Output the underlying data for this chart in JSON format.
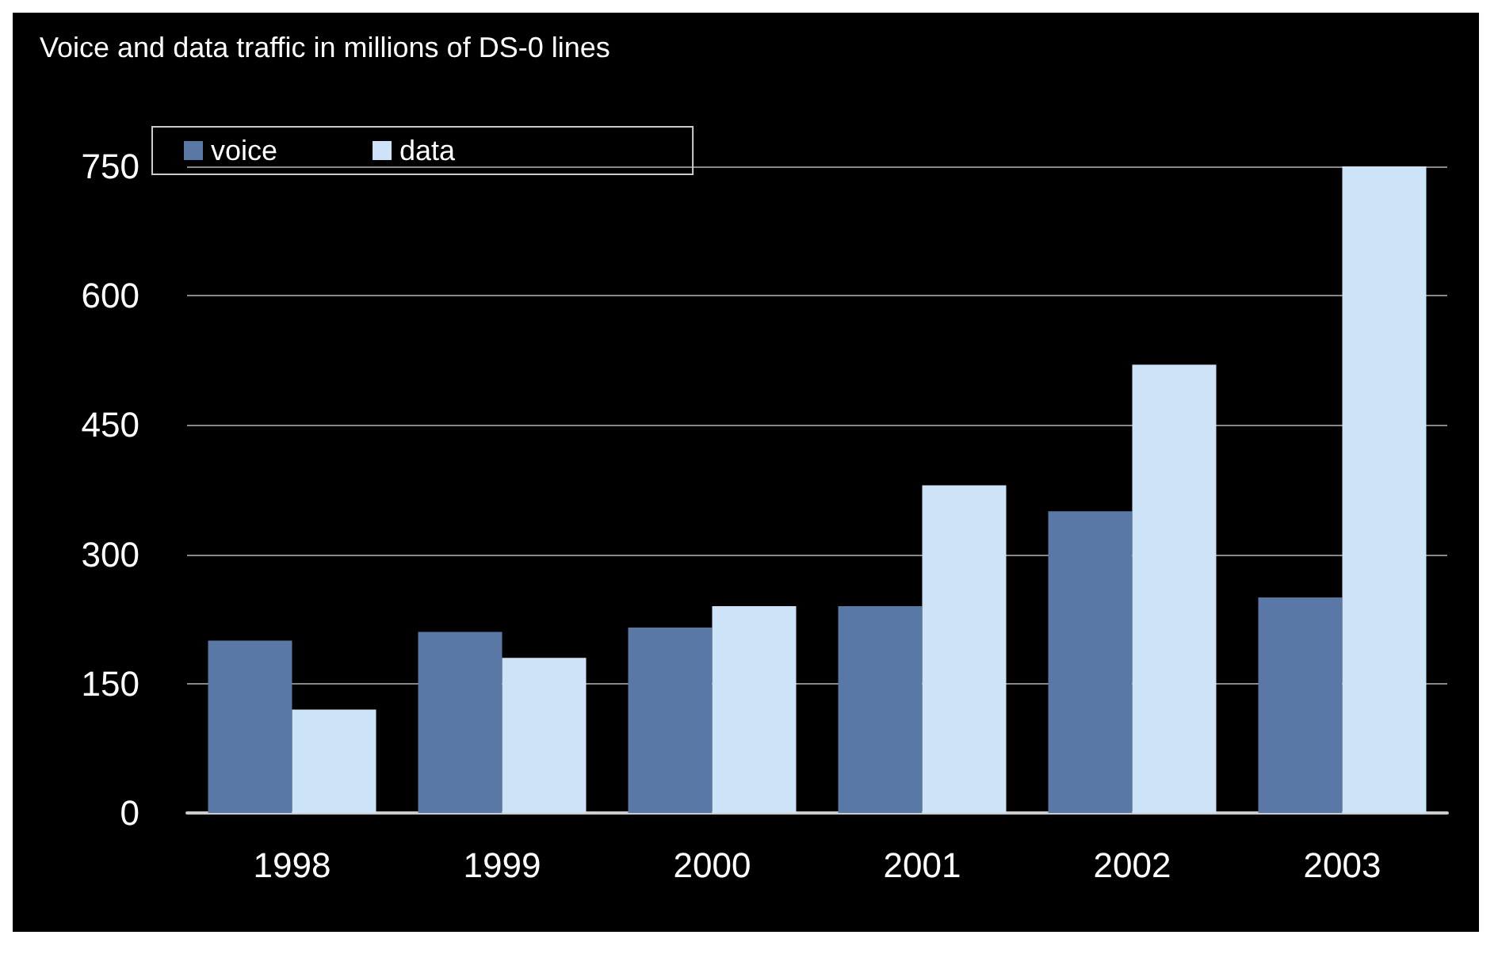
{
  "chart_data": {
    "type": "bar",
    "title": "Voice and data traffic in millions of DS-0 lines",
    "categories": [
      "1998",
      "1999",
      "2000",
      "2001",
      "2002",
      "2003"
    ],
    "series": [
      {
        "name": "voice",
        "color": "#5a78a6",
        "values": [
          200,
          210,
          215,
          240,
          350,
          250
        ]
      },
      {
        "name": "data",
        "color": "#cde3f7",
        "values": [
          120,
          180,
          240,
          380,
          520,
          750
        ]
      }
    ],
    "ylim": [
      0,
      750
    ],
    "yticks": [
      0,
      150,
      300,
      450,
      600,
      750
    ],
    "grid": "y",
    "legend": "top left"
  }
}
